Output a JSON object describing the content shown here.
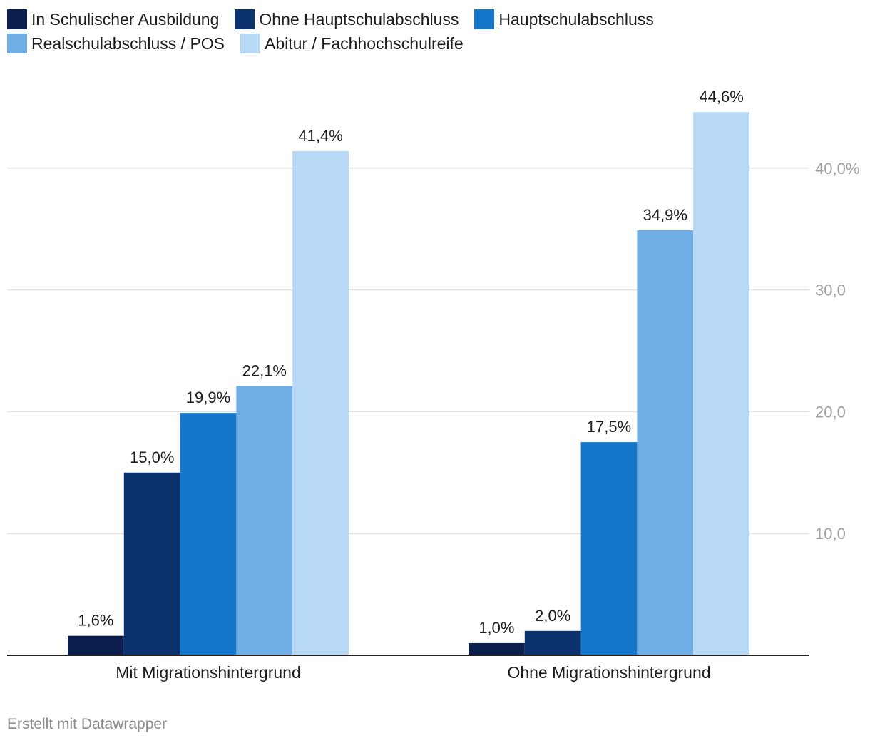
{
  "chart_data": {
    "type": "bar",
    "title": "",
    "xlabel": "",
    "ylabel": "",
    "ylim": [
      0,
      45
    ],
    "yticks": [
      10,
      20,
      30,
      40
    ],
    "ytick_labels": [
      "10,0",
      "20,0",
      "30,0",
      "40,0%"
    ],
    "grid": true,
    "legend_position": "top-left",
    "categories": [
      "Mit Migrationshintergrund",
      "Ohne Migrationshintergrund"
    ],
    "series": [
      {
        "name": "In Schulischer Ausbildung",
        "color": "#0a1f4d",
        "values": [
          1.6,
          1.0
        ],
        "labels": [
          "1,6%",
          "1,0%"
        ]
      },
      {
        "name": "Ohne Hauptschulabschluss",
        "color": "#0c326e",
        "values": [
          15.0,
          2.0
        ],
        "labels": [
          "15,0%",
          "2,0%"
        ]
      },
      {
        "name": "Hauptschulabschluss",
        "color": "#1577cc",
        "values": [
          19.9,
          17.5
        ],
        "labels": [
          "19,9%",
          "17,5%"
        ]
      },
      {
        "name": "Realschulabschluss / POS",
        "color": "#70ade4",
        "values": [
          22.1,
          34.9
        ],
        "labels": [
          "22,1%",
          "34,9%"
        ]
      },
      {
        "name": "Abitur / Fachhochschulreife",
        "color": "#b7d9f5",
        "values": [
          41.4,
          44.6
        ],
        "labels": [
          "41,4%",
          "44,6%"
        ]
      }
    ]
  },
  "footer": "Erstellt mit Datawrapper"
}
